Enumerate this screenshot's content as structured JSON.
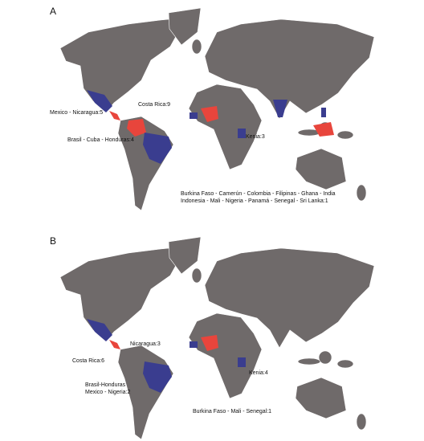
{
  "panel_a": {
    "label": "A",
    "annotations": [
      "Costa Rica:9",
      "Mexico - Nicaragua:5",
      "Brasil - Cuba - Honduras:4",
      "Kenia:3",
      "Burkina Faso - Camerún - Colombia - Filipinas - Ghana - India",
      "Indonesia - Mali - Nigeria - Panamá - Senegal - Sri Lanka:1"
    ]
  },
  "panel_b": {
    "label": "B",
    "annotations": [
      "Nicaragua:3",
      "Costa Rica:6",
      "Brasil-Honduras",
      "Mexico - Nigeria:2",
      "Kenia:4",
      "Burkina Faso - Mali - Senegal:1"
    ]
  }
}
